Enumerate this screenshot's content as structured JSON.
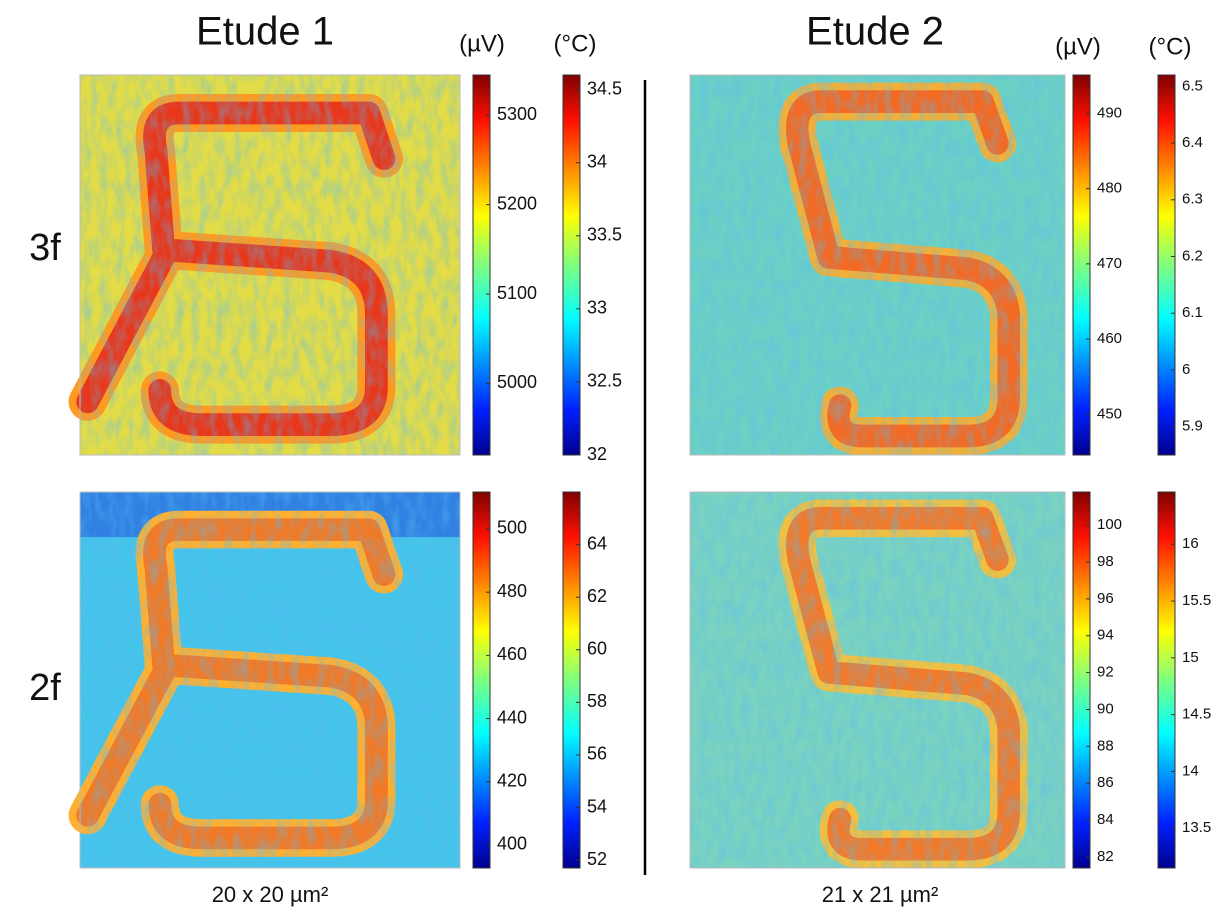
{
  "rows": [
    "3f",
    "2f"
  ],
  "etudes": [
    {
      "title": "Etude 1",
      "units": [
        "(µV)",
        "(°C)"
      ],
      "caption": "20 x 20 µm²",
      "panels": [
        {
          "colorbars": [
            {
              "lim": [
                4920,
                5345
              ],
              "ticks": [
                5000,
                5100,
                5200,
                5300
              ]
            },
            {
              "lim": [
                32,
                34.6
              ],
              "ticks": [
                32,
                32.5,
                33,
                33.5,
                34,
                34.5
              ]
            }
          ]
        },
        {
          "colorbars": [
            {
              "lim": [
                392.7,
                511.7
              ],
              "ticks": [
                400,
                420,
                440,
                460,
                480,
                500
              ]
            },
            {
              "lim": [
                51.7,
                66
              ],
              "ticks": [
                52,
                54,
                56,
                58,
                60,
                62,
                64
              ]
            }
          ]
        }
      ]
    },
    {
      "title": "Etude 2",
      "units": [
        "(µV)",
        "(°C)"
      ],
      "caption": "21 x 21 µm²",
      "panels": [
        {
          "colorbars": [
            {
              "lim": [
                444.6,
                495.1
              ],
              "ticks": [
                450,
                460,
                470,
                480,
                490
              ]
            },
            {
              "lim": [
                5.85,
                6.52
              ],
              "ticks": [
                5.9,
                6,
                6.1,
                6.2,
                6.3,
                6.4,
                6.5
              ]
            }
          ]
        },
        {
          "colorbars": [
            {
              "lim": [
                81.4,
                101.8
              ],
              "ticks": [
                82,
                84,
                86,
                88,
                90,
                92,
                94,
                96,
                98,
                100
              ]
            },
            {
              "lim": [
                13.15,
                16.46
              ],
              "ticks": [
                13.5,
                14,
                14.5,
                15,
                15.5,
                16
              ]
            }
          ]
        }
      ]
    }
  ]
}
